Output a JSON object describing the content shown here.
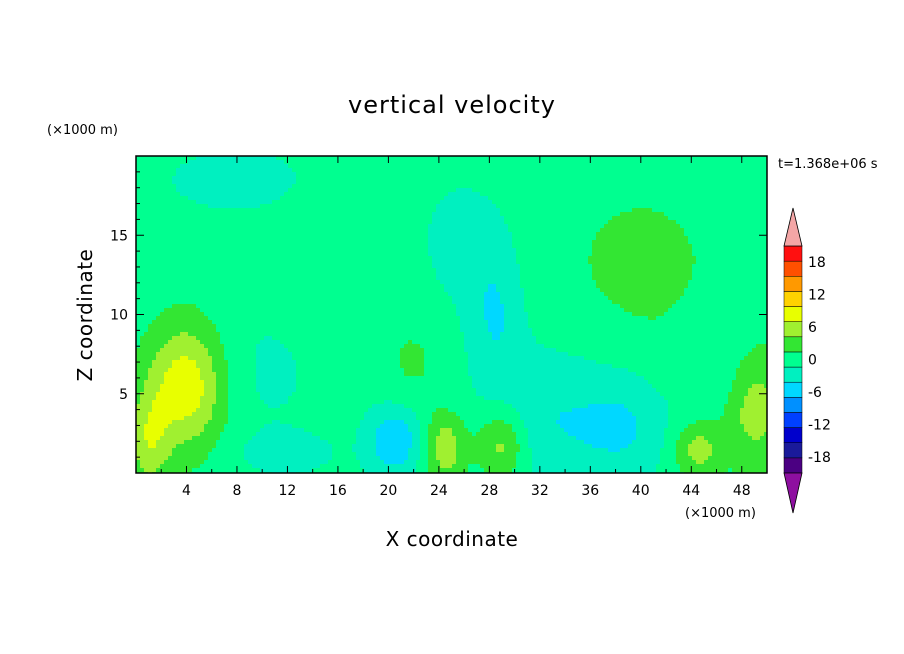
{
  "chart_data": {
    "type": "heatmap",
    "title": "vertical velocity",
    "xlabel": "X coordinate",
    "ylabel": "Z coordinate",
    "x_unit": "(×1000 m)",
    "y_unit": "(×1000 m)",
    "time_label": "t=1.368e+06 s",
    "xlim": [
      0,
      50
    ],
    "ylim": [
      0,
      20
    ],
    "x_ticks": [
      4,
      8,
      12,
      16,
      20,
      24,
      28,
      32,
      36,
      40,
      44,
      48
    ],
    "y_ticks": [
      5,
      10,
      15
    ],
    "colorbar": {
      "levels": [
        -21,
        -18,
        -15,
        -12,
        -9,
        -6,
        -3,
        0,
        3,
        6,
        9,
        12,
        15,
        18,
        21
      ],
      "tick_values": [
        -18,
        -12,
        -6,
        0,
        6,
        12,
        18
      ],
      "colors": [
        "#4b0082",
        "#1a1a9a",
        "#0000cc",
        "#0040ff",
        "#0090ff",
        "#00d8ff",
        "#00f0c0",
        "#00ff90",
        "#33e633",
        "#a0f030",
        "#e8ff00",
        "#ffd200",
        "#ff9900",
        "#ff5000",
        "#ff1010"
      ],
      "under_color": "#8e0fa0",
      "over_color": "#f4a6a6"
    },
    "field": {
      "base_value": 1.5,
      "features": [
        {
          "x": 4.0,
          "z": 5.5,
          "sx": 2.2,
          "sz": 2.8,
          "value": 10
        },
        {
          "x": 1.0,
          "z": 2.0,
          "sx": 1.2,
          "sz": 2.2,
          "value": 6
        },
        {
          "x": 49.0,
          "z": 4.0,
          "sx": 1.8,
          "sz": 2.5,
          "value": 6
        },
        {
          "x": 24.5,
          "z": 1.6,
          "sx": 1.2,
          "sz": 1.5,
          "value": 7
        },
        {
          "x": 29.0,
          "z": 1.8,
          "sx": 1.4,
          "sz": 1.6,
          "value": 7
        },
        {
          "x": 44.5,
          "z": 1.5,
          "sx": 1.3,
          "sz": 1.2,
          "value": 6
        },
        {
          "x": 40.0,
          "z": 12.5,
          "sx": 6.0,
          "sz": 5.5,
          "value": 2
        },
        {
          "x": 22.0,
          "z": 7.0,
          "sx": 1.8,
          "sz": 2.2,
          "value": 2
        },
        {
          "x": 16.0,
          "z": 13.0,
          "sx": 3.0,
          "sz": 3.0,
          "value": 1.5
        },
        {
          "x": 8.0,
          "z": 18.5,
          "sx": 5.0,
          "sz": 1.8,
          "value": -2.5
        },
        {
          "x": 10.0,
          "z": 6.5,
          "sx": 4.0,
          "sz": 3.5,
          "value": -2
        },
        {
          "x": 33.0,
          "z": 3.5,
          "sx": 4.0,
          "sz": 3.5,
          "value": -4.5
        },
        {
          "x": 20.5,
          "z": 2.0,
          "sx": 1.6,
          "sz": 1.6,
          "value": -7
        },
        {
          "x": 28.5,
          "z": 10.0,
          "sx": 1.5,
          "sz": 3.0,
          "value": -4
        },
        {
          "x": 39.0,
          "z": 3.0,
          "sx": 2.5,
          "sz": 2.5,
          "value": -4
        },
        {
          "x": 26.0,
          "z": 14.5,
          "sx": 3.0,
          "sz": 3.5,
          "value": -2.5
        },
        {
          "x": 46.0,
          "z": 6.5,
          "sx": 2.0,
          "sz": 2.5,
          "value": -2.5
        },
        {
          "x": 12.0,
          "z": 1.2,
          "sx": 3.0,
          "sz": 1.0,
          "value": -2.5
        }
      ]
    }
  }
}
